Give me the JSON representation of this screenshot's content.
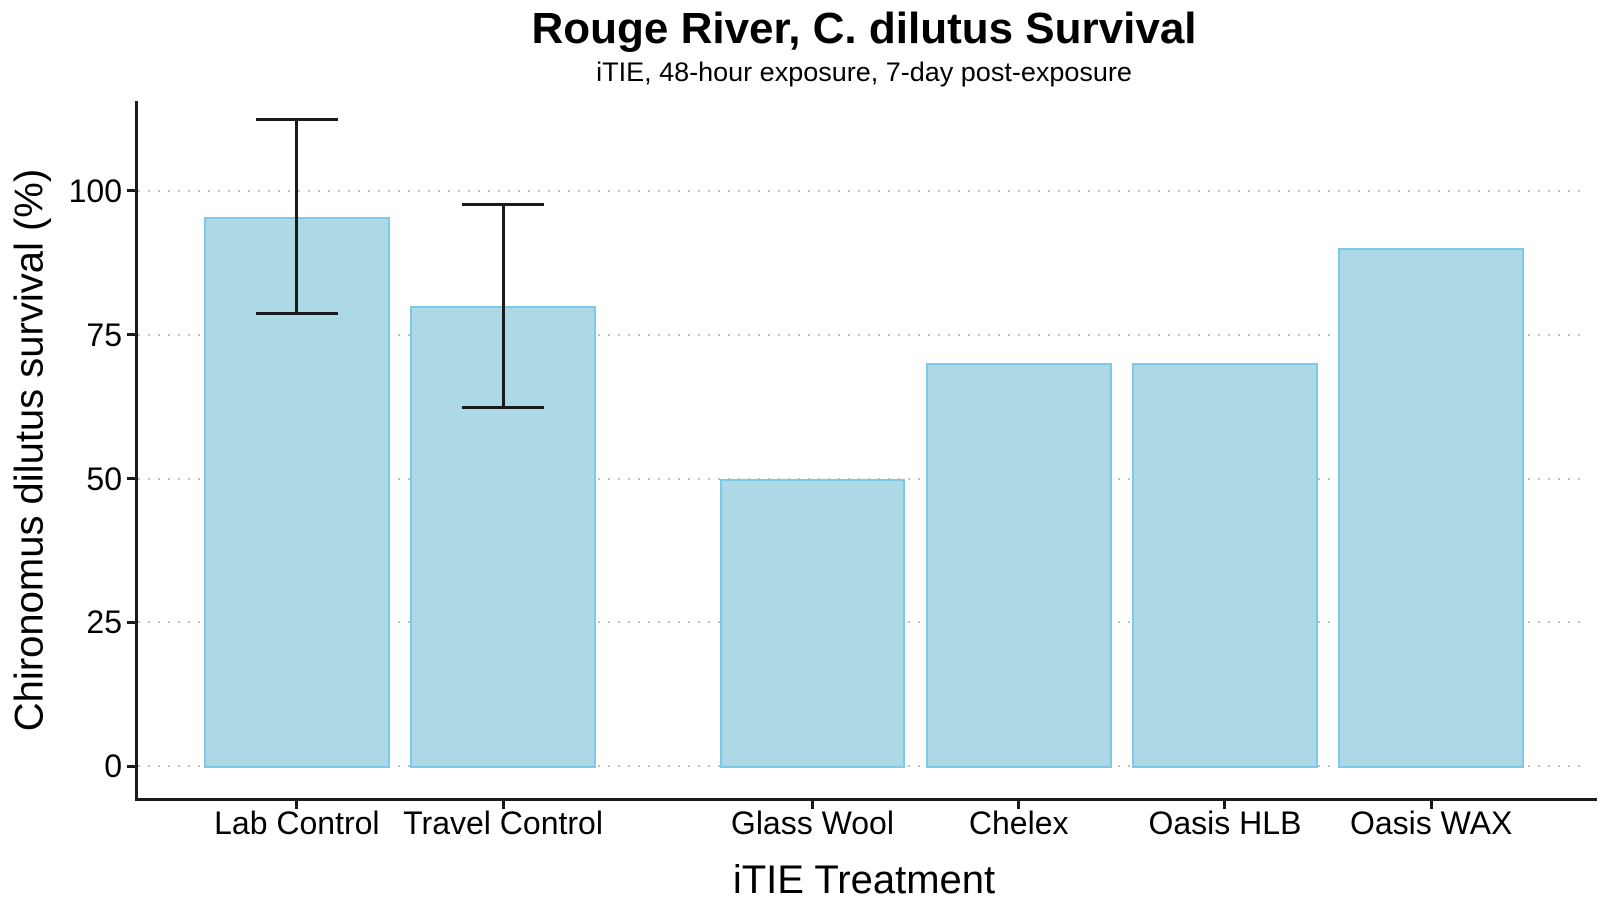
{
  "chart_data": {
    "type": "bar",
    "title": "Rouge River, C. dilutus Survival",
    "subtitle": "iTIE, 48-hour exposure, 7-day post-exposure",
    "xlabel": "iTIE Treatment",
    "ylabel": "Chironomus dilutus survival (%)",
    "categories": [
      "Lab Control",
      "Travel Control",
      "Glass Wool",
      "Chelex",
      "Oasis HLB",
      "Oasis WAX"
    ],
    "values": [
      95.5,
      80,
      50,
      70,
      70,
      90
    ],
    "error_bars": [
      {
        "low": 78.6,
        "high": 112.4
      },
      {
        "low": 62.4,
        "high": 97.6
      },
      null,
      null,
      null,
      null
    ],
    "y_ticks": [
      0,
      25,
      50,
      75,
      100
    ],
    "y_domain": [
      -5.5,
      115.6
    ],
    "x_positions": [
      1,
      2,
      3.5,
      4.5,
      5.5,
      6.5
    ],
    "x_domain": [
      0.23,
      7.27
    ],
    "bar_width_units": 0.9,
    "error_cap_width_units": 0.4,
    "grid": "horizontal dotted major gridlines",
    "legend_position": "none",
    "colors": {
      "bar_fill": "#ADD8E6",
      "bar_stroke": "#7EC8E8",
      "axis": "#1a1a1a",
      "gridline": "#c4c4c4",
      "error_bar": "#1a1a1a",
      "background": "#ffffff"
    }
  }
}
